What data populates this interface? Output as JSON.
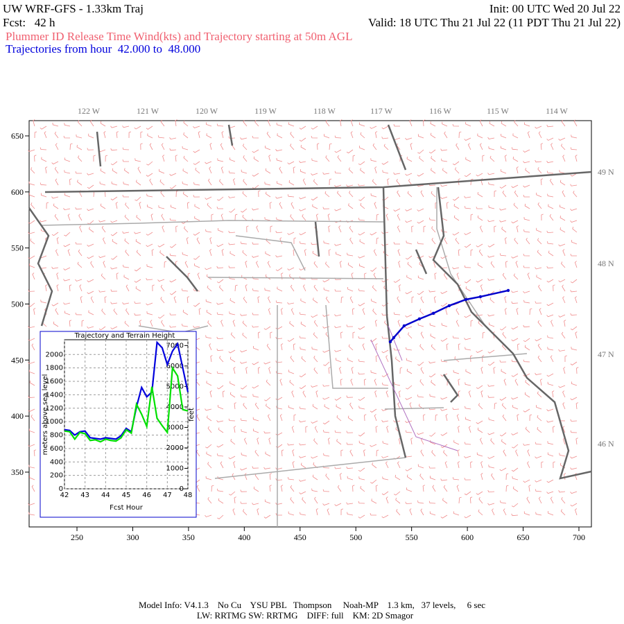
{
  "header": {
    "title": "UW WRF-GFS - 1.33km Traj",
    "init": "Init: 00 UTC Wed 20 Jul 22",
    "fcst": "Fcst:   42 h",
    "valid": "Valid: 18 UTC Thu 21 Jul 22 (11 PDT Thu 21 Jul 22)",
    "subtitle": "Plummer ID Release Time Wind(kts) and Trajectory starting at 50m AGL",
    "trajectories": "Trajectories from hour  42.000 to  48.000"
  },
  "chart_data": [
    {
      "type": "map",
      "xlim": [
        207.1,
        711.2
      ],
      "ylim": [
        301.1,
        663.6
      ],
      "xticks": [
        250,
        300,
        350,
        400,
        450,
        500,
        550,
        600,
        650,
        700
      ],
      "yticks": [
        350,
        400,
        450,
        500,
        550,
        600,
        650
      ],
      "lon_labels": [
        "122 W",
        "121 W",
        "120 W",
        "119 W",
        "118 W",
        "117 W",
        "116 W",
        "115 W",
        "114 W"
      ],
      "lat_labels": [
        "49 N",
        "48 N",
        "47 N",
        "46 N"
      ],
      "trajectory": {
        "color": "#0000cc",
        "x": [
          530.9,
          534.0,
          543.3,
          557.0,
          569.5,
          583.7,
          598.7,
          611.7,
          636.6
        ],
        "y": [
          466.3,
          470.0,
          480.5,
          486.7,
          491.7,
          498.5,
          504.0,
          506.5,
          512.1
        ]
      }
    },
    {
      "type": "line",
      "title": "Trajectory and Terrain Height",
      "xlabel": "Fcst Hour",
      "ylabel": "meters above sea level",
      "y2label": "feet",
      "x": [
        42,
        42.25,
        42.5,
        42.75,
        43,
        43.25,
        43.5,
        43.75,
        44,
        44.25,
        44.5,
        44.75,
        45,
        45.25,
        45.5,
        45.75,
        46,
        46.25,
        46.5,
        46.75,
        47,
        47.25,
        47.5,
        47.75,
        48
      ],
      "xlim": [
        42,
        48
      ],
      "xticks": [
        42,
        43,
        44,
        45,
        46,
        47,
        48
      ],
      "ylim": [
        0,
        2220
      ],
      "yticks": [
        0,
        200,
        400,
        600,
        800,
        1000,
        1200,
        1400,
        1600,
        1800,
        2000
      ],
      "y2lim": [
        0,
        7283
      ],
      "y2ticks": [
        0,
        1000,
        2000,
        3000,
        4000,
        5000,
        6000,
        7000
      ],
      "grid": true,
      "series": [
        {
          "color": "#0000dd",
          "values": [
            880,
            870,
            800,
            850,
            860,
            760,
            750,
            740,
            760,
            750,
            740,
            790,
            900,
            850,
            1220,
            1510,
            1370,
            1440,
            2180,
            2100,
            1850,
            2050,
            2160,
            1800,
            1440
          ]
        },
        {
          "color": "#00e000",
          "values": [
            860,
            850,
            740,
            840,
            820,
            720,
            730,
            700,
            740,
            720,
            710,
            760,
            880,
            830,
            1260,
            1110,
            930,
            1520,
            1050,
            940,
            840,
            1800,
            1680,
            1180,
            1160
          ]
        }
      ]
    }
  ],
  "footer": {
    "line1": "Model Info: V4.1.3    No Cu    YSU PBL   Thompson     Noah-MP    1.3 km,   37 levels,     6 sec",
    "line2": "LW: RRTMG SW: RRTMG    DIFF: full    KM: 2D Smagor"
  }
}
